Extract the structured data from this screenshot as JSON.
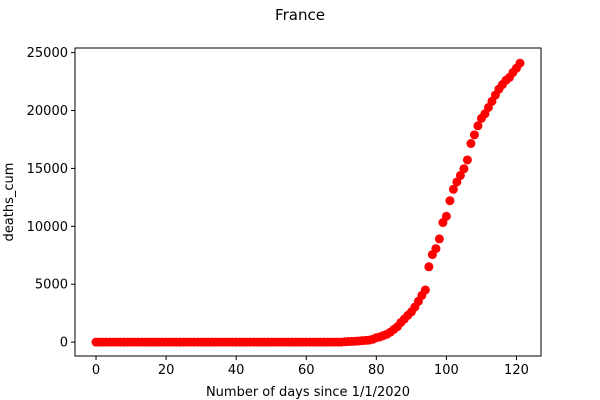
{
  "chart_data": {
    "type": "scatter",
    "title": "France",
    "xlabel": "Number of days since 1/1/2020",
    "ylabel": "deaths_cum",
    "xlim": [
      -6,
      127
    ],
    "ylim": [
      -1200,
      25400
    ],
    "xticks": [
      0,
      20,
      40,
      60,
      80,
      100,
      120
    ],
    "yticks": [
      0,
      5000,
      10000,
      15000,
      20000,
      25000
    ],
    "grid": false,
    "marker_color": "#ff0000",
    "series": [
      {
        "x": [
          0,
          1,
          2,
          3,
          4,
          5,
          6,
          7,
          8,
          9,
          10,
          11,
          12,
          13,
          14,
          15,
          16,
          17,
          18,
          19,
          20,
          21,
          22,
          23,
          24,
          25,
          26,
          27,
          28,
          29,
          30,
          31,
          32,
          33,
          34,
          35,
          36,
          37,
          38,
          39,
          40,
          41,
          42,
          43,
          44,
          45,
          46,
          47,
          48,
          49,
          50,
          51,
          52,
          53,
          54,
          55,
          56,
          57,
          58,
          59,
          60,
          61,
          62,
          63,
          64,
          65,
          66,
          67,
          68,
          69,
          70,
          71,
          72,
          73,
          74,
          75,
          76,
          77,
          78,
          79,
          80,
          81,
          82,
          83,
          84,
          85,
          86,
          87,
          88,
          89,
          90,
          91,
          92,
          93,
          94,
          95,
          96,
          97,
          98,
          99,
          100,
          101,
          102,
          103,
          104,
          105,
          106,
          107,
          108,
          109,
          110,
          111,
          112,
          113,
          114,
          115,
          116,
          117,
          118,
          119,
          120,
          121
        ],
        "y": [
          0,
          0,
          0,
          0,
          0,
          0,
          0,
          0,
          0,
          0,
          0,
          0,
          0,
          0,
          0,
          0,
          0,
          0,
          0,
          0,
          0,
          0,
          0,
          0,
          0,
          0,
          0,
          0,
          0,
          0,
          0,
          0,
          0,
          0,
          0,
          0,
          0,
          0,
          0,
          0,
          0,
          0,
          0,
          0,
          0,
          0,
          0,
          0,
          0,
          0,
          0,
          0,
          0,
          0,
          0,
          0,
          0,
          0,
          0,
          0,
          0,
          0,
          0,
          0,
          0,
          0,
          0,
          0,
          0,
          0,
          0,
          33,
          48,
          61,
          79,
          91,
          127,
          148,
          175,
          244,
          372,
          450,
          562,
          674,
          860,
          1100,
          1331,
          1696,
          1995,
          2314,
          2606,
          3024,
          3523,
          4032,
          4503,
          6507,
          7560,
          8078,
          8911,
          10328,
          10869,
          12210,
          13197,
          13832,
          14393,
          14967,
          15729,
          17148,
          17901,
          18681,
          19323,
          19718,
          20265,
          20796,
          21340,
          21856,
          22245,
          22614,
          22856,
          23293,
          23660,
          24087
        ]
      }
    ]
  }
}
